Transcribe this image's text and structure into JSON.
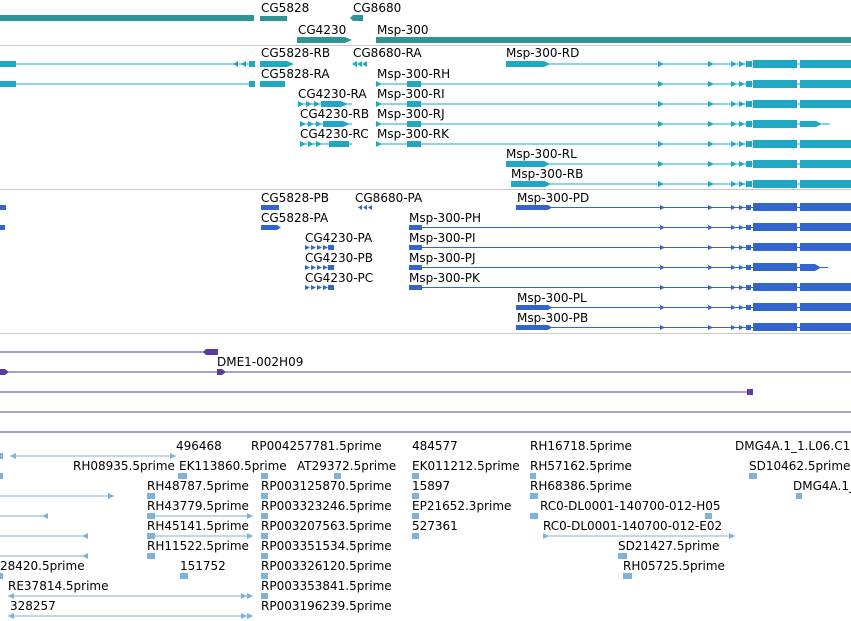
{
  "tracks": {
    "genes": {
      "labels": [
        "CG5828",
        "CG8680",
        "CG4230",
        "Msp-300"
      ],
      "colors": {
        "bar": "#2e9494"
      }
    },
    "transcripts": {
      "labels": [
        "CG5828-RB",
        "CG8680-RA",
        "Msp-300-RD",
        "CG5828-RA",
        "Msp-300-RH",
        "CG4230-RA",
        "Msp-300-RI",
        "CG4230-RB",
        "Msp-300-RJ",
        "CG4230-RC",
        "Msp-300-RK",
        "Msp-300-RL",
        "Msp-300-RB"
      ],
      "colors": {
        "exon": "#1fa7c4"
      }
    },
    "proteins": {
      "labels": [
        "CG5828-PB",
        "CG8680-PA",
        "Msp-300-PD",
        "CG5828-PA",
        "Msp-300-PH",
        "CG4230-PA",
        "Msp-300-PI",
        "CG4230-PB",
        "Msp-300-PJ",
        "CG4230-PC",
        "Msp-300-PK",
        "Msp-300-PL",
        "Msp-300-PB"
      ],
      "colors": {
        "exon": "#3366cc"
      }
    },
    "clones": {
      "labels": [
        "DME1-002H09"
      ],
      "colors": {
        "line": "#5b3c9a"
      }
    },
    "ests": {
      "labels": [
        "496468",
        "RP004257781.5prime",
        "484577",
        "RH16718.5prime",
        "DMG4A.1_1.L06.C1",
        "RH08935.5prime",
        "EK113860.5prime",
        "AT29372.5prime",
        "EK011212.5prime",
        "RH57162.5prime",
        "SD10462.5prime",
        "RH48787.5prime",
        "RP003125870.5prime",
        "15897",
        "RH68386.5prime",
        "DMG4A.1_",
        "RH43779.5prime",
        "RP003323246.5prime",
        "EP21652.3prime",
        "RC0-DL0001-140700-012-H05",
        "RH45141.5prime",
        "RP003207563.5prime",
        "527361",
        "RC0-DL0001-140700-012-E02",
        "RH11522.5prime",
        "RP003351534.5prime",
        "SD21427.5prime",
        "28420.5prime",
        "151752",
        "RP003326120.5prime",
        "RH05725.5prime",
        "RE37814.5prime",
        "RP003353841.5prime",
        "328257",
        "RP003196239.5prime"
      ],
      "colors": {
        "line": "#7fb2da"
      }
    }
  }
}
